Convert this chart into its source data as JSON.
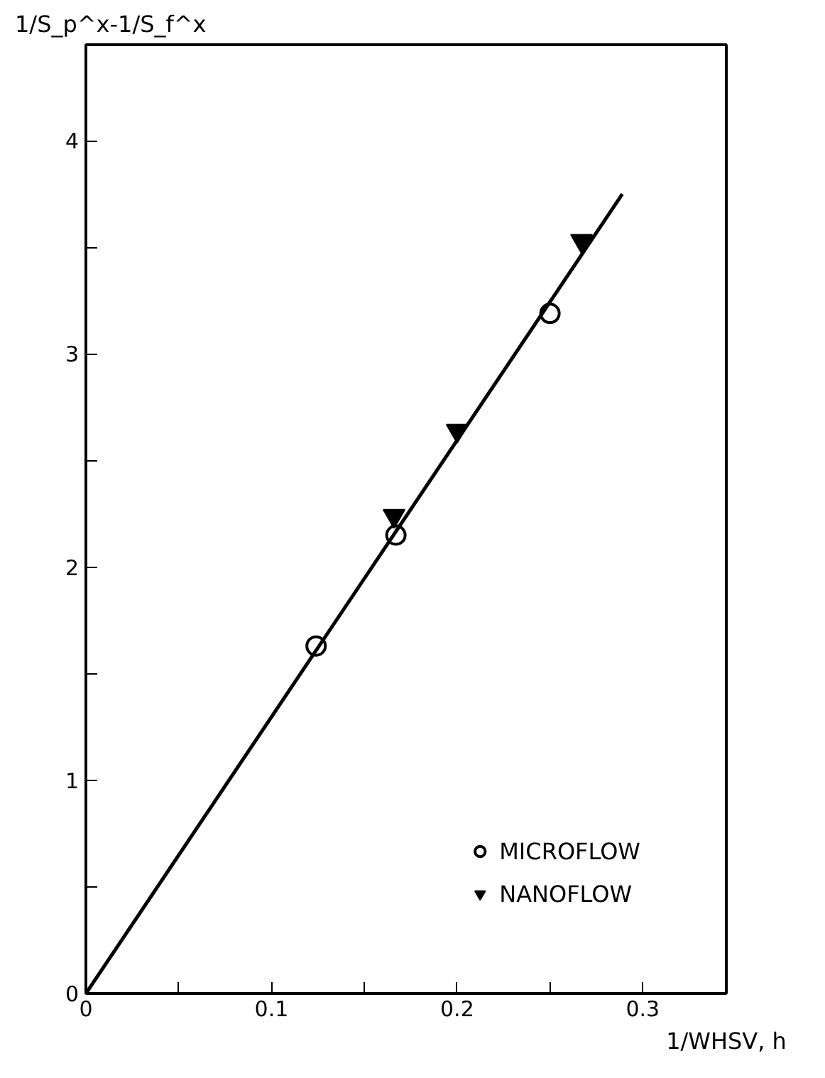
{
  "chart_data": {
    "type": "scatter",
    "xlabel": "1/WHSV, h",
    "ylabel": "1/S_p^x-1/S_f^x",
    "xlim": [
      0,
      0.345
    ],
    "ylim": [
      0,
      4.45
    ],
    "xticks": [
      0,
      {
        "value": 0.05,
        "label": null
      },
      0.1,
      {
        "value": 0.15,
        "label": null
      },
      0.2,
      {
        "value": 0.25,
        "label": null
      },
      0.3
    ],
    "yticks": [
      0,
      {
        "value": 0.5,
        "label": null
      },
      1,
      {
        "value": 1.5,
        "label": null
      },
      2,
      {
        "value": 2.5,
        "label": null
      },
      3,
      {
        "value": 3.5,
        "label": null
      },
      4
    ],
    "grid": false,
    "legend": "bottom right",
    "series": [
      {
        "name": "MICROFLOW",
        "color": "#000000",
        "marker": "circle",
        "x": [
          0.124,
          0.167,
          0.25
        ],
        "values": [
          1.63,
          2.15,
          3.19
        ]
      },
      {
        "name": "NANOFLOW",
        "color": "#000000",
        "marker": "triangle",
        "x": [
          0.166,
          0.2,
          0.267
        ],
        "values": [
          2.24,
          2.64,
          3.53
        ]
      },
      {
        "type": "line",
        "color": "#000000",
        "marker": "none",
        "x": [
          0,
          0.289
        ],
        "values": [
          0,
          3.75
        ]
      }
    ]
  }
}
